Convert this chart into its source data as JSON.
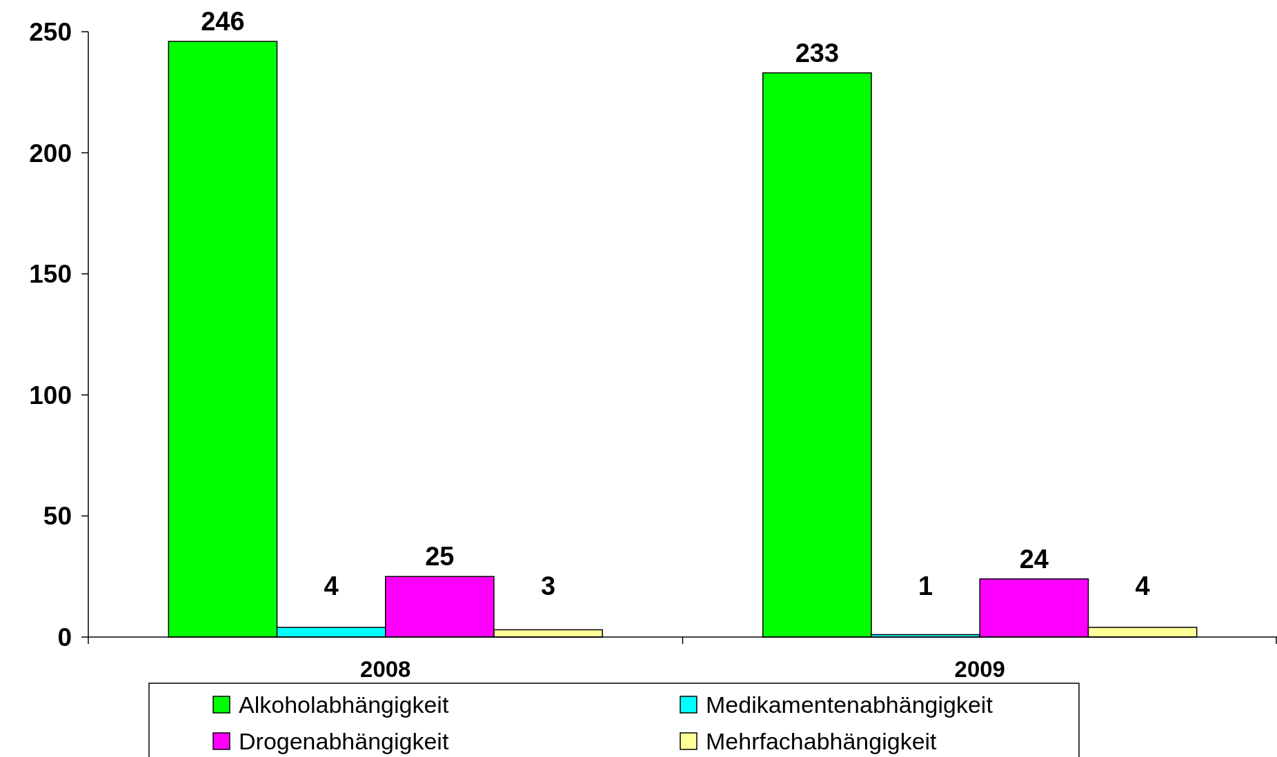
{
  "chart_data": {
    "type": "bar",
    "categories": [
      "2008",
      "2009"
    ],
    "series": [
      {
        "name": "Alkoholabhängigkeit",
        "color": "#00ff00",
        "values": [
          246,
          233
        ]
      },
      {
        "name": "Medikamentenabhängigkeit",
        "color": "#00ffff",
        "values": [
          4,
          1
        ]
      },
      {
        "name": "Drogenabhängigkeit",
        "color": "#ff00ff",
        "values": [
          25,
          24
        ]
      },
      {
        "name": "Mehrfachabhängigkeit",
        "color": "#ffff99",
        "values": [
          3,
          4
        ]
      }
    ],
    "ylim": [
      0,
      250
    ],
    "yticks": [
      0,
      50,
      100,
      150,
      200,
      250
    ],
    "data_labels": true,
    "legend": "bottom",
    "grid": false
  }
}
